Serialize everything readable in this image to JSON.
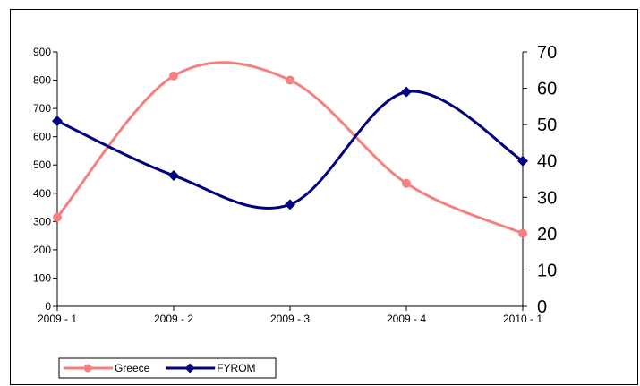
{
  "chart_data": {
    "type": "line",
    "categories": [
      "2009 - 1",
      "2009 - 2",
      "2009 - 3",
      "2009 - 4",
      "2010 - 1"
    ],
    "series": [
      {
        "name": "Greece",
        "axis": "left",
        "color": "#f58080",
        "marker": "circle",
        "values": [
          315,
          815,
          800,
          435,
          258
        ]
      },
      {
        "name": "FYROM",
        "axis": "right",
        "color": "#000080",
        "marker": "diamond",
        "values": [
          51,
          36,
          28,
          59,
          40
        ]
      }
    ],
    "y_left": {
      "ylim": [
        0,
        900
      ],
      "ticks": [
        "0",
        "100",
        "200",
        "300",
        "400",
        "500",
        "600",
        "700",
        "800",
        "900"
      ]
    },
    "y_right": {
      "ylim": [
        0,
        70
      ],
      "ticks": [
        "0",
        "10",
        "20",
        "30",
        "40",
        "50",
        "60",
        "70"
      ]
    },
    "smooth": true,
    "grid": false,
    "legend_position": "bottom-left"
  }
}
